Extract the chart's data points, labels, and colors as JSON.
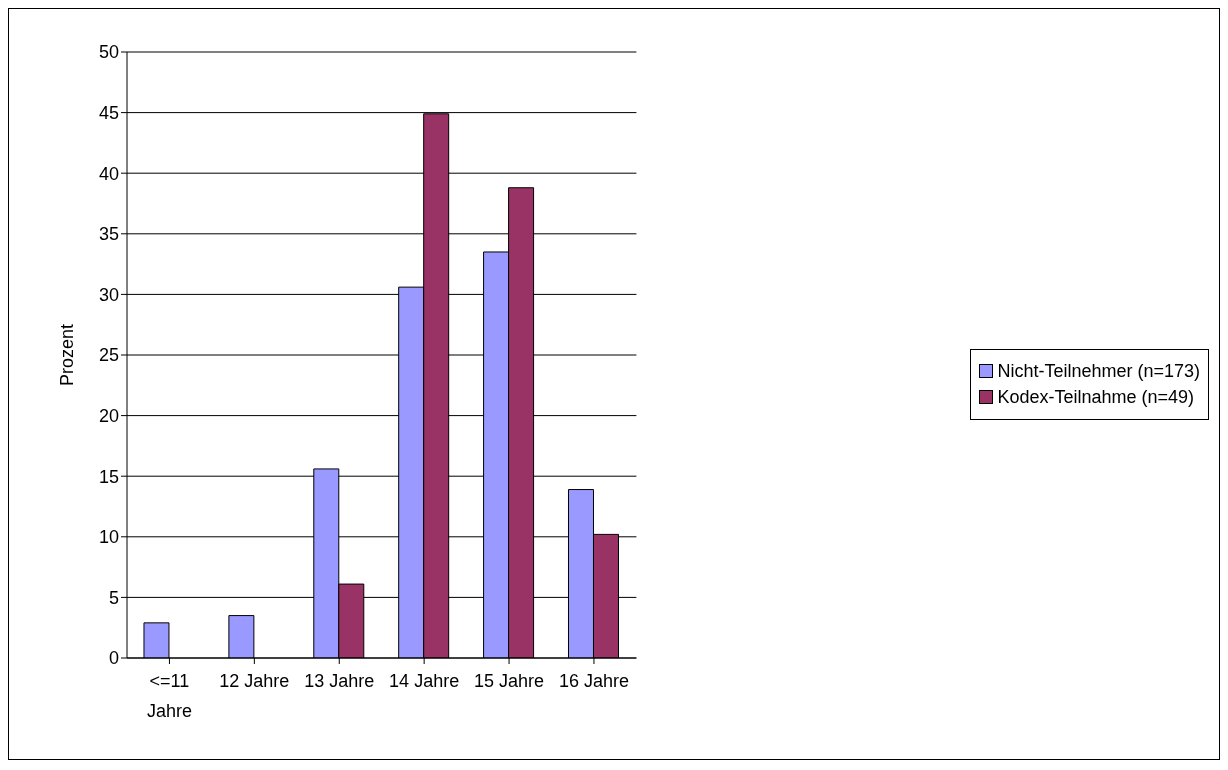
{
  "chart_data": {
    "type": "bar",
    "ylabel": "Prozent",
    "categories": [
      "<=11 Jahre",
      "12 Jahre",
      "13 Jahre",
      "14 Jahre",
      "15 Jahre",
      "16 Jahre"
    ],
    "series": [
      {
        "name": "Nicht-Teilnehmer (n=173)",
        "color": "#9999ff",
        "values": [
          2.9,
          3.5,
          15.6,
          30.6,
          33.5,
          13.9
        ]
      },
      {
        "name": "Kodex-Teilnahme (n=49)",
        "color": "#993366",
        "values": [
          0,
          0,
          6.1,
          44.9,
          38.8,
          10.2
        ]
      }
    ],
    "ylim": [
      0,
      50
    ],
    "yticks": [
      0,
      5,
      10,
      15,
      20,
      25,
      30,
      35,
      40,
      45,
      50
    ],
    "grid": "y",
    "legend": "right"
  }
}
